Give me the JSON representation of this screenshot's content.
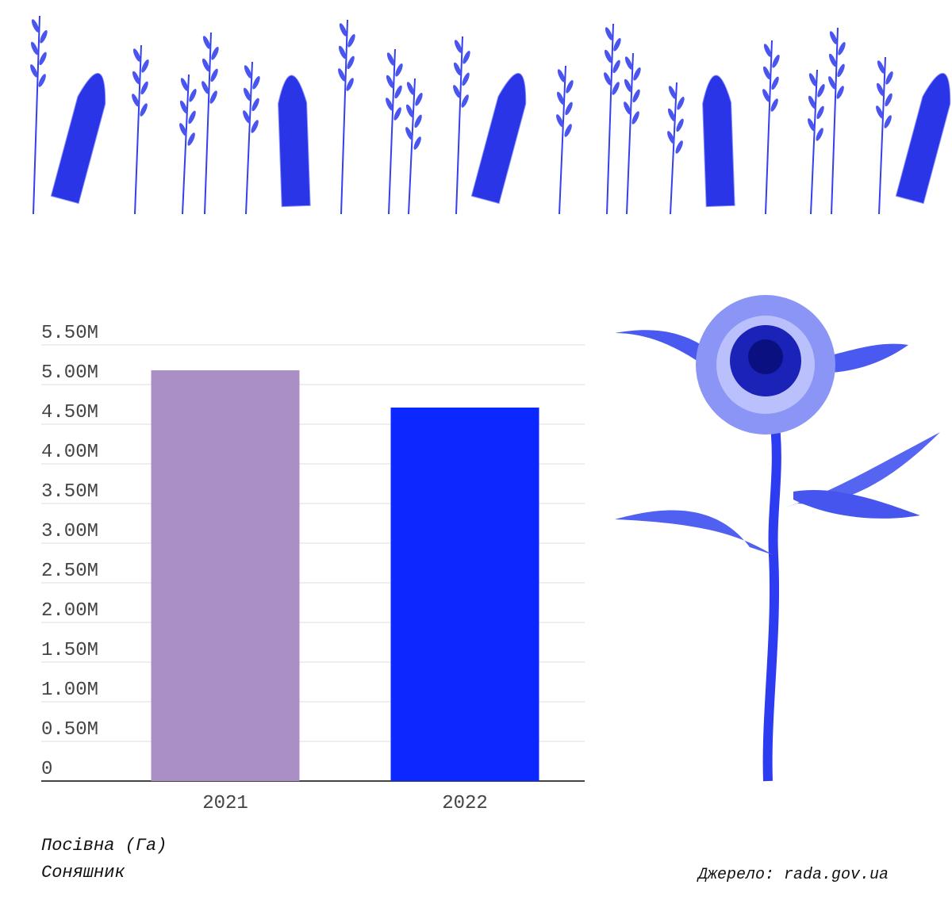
{
  "chart_data": {
    "type": "bar",
    "title": "Посівна (Га)",
    "subtitle": "Соняшник",
    "source": "Джерело: rada.gov.ua",
    "categories": [
      "2021",
      "2022"
    ],
    "values": [
      5180000,
      4710000
    ],
    "colors": [
      "#a98fc4",
      "#0a28ff"
    ],
    "ylim": [
      0,
      5500000
    ],
    "yticks": [
      0,
      {
        "value": 500000,
        "label": "0.50M"
      },
      {
        "value": 1000000,
        "label": "1.00M"
      },
      {
        "value": 1500000,
        "label": "1.50M"
      },
      {
        "value": 2000000,
        "label": "2.00M"
      },
      {
        "value": 2500000,
        "label": "2.50M"
      },
      {
        "value": 3000000,
        "label": "3.00M"
      },
      {
        "value": 3500000,
        "label": "3.50M"
      },
      {
        "value": 4000000,
        "label": "4.00M"
      },
      {
        "value": 4500000,
        "label": "4.50M"
      },
      {
        "value": 5000000,
        "label": "5.00M"
      },
      {
        "value": 5500000,
        "label": "5.50M"
      }
    ],
    "grid": true
  }
}
